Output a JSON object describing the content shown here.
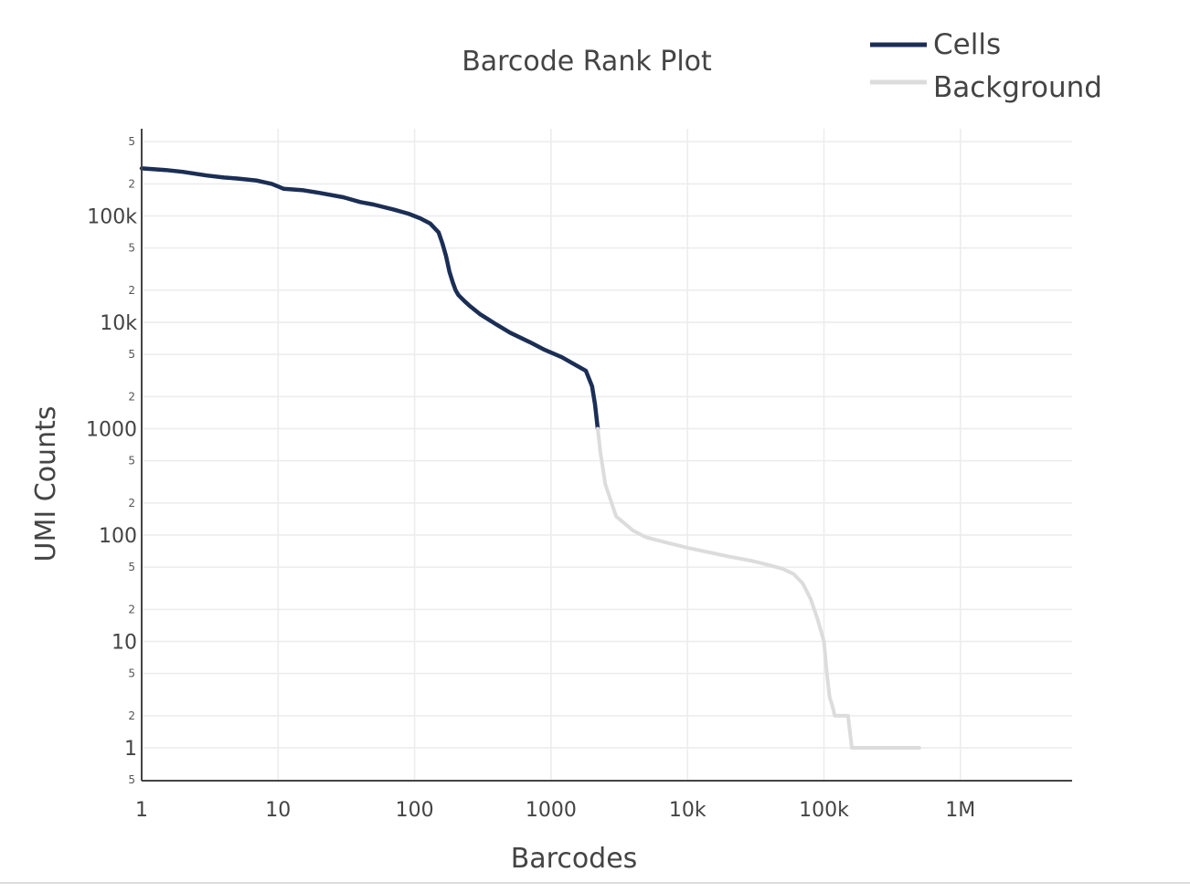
{
  "chart_data": {
    "type": "line",
    "title": "Barcode Rank Plot",
    "xlabel": "Barcodes",
    "ylabel": "UMI Counts",
    "x_scale": "log",
    "y_scale": "log",
    "xlim": [
      1,
      6000000
    ],
    "ylim": [
      0.5,
      500000
    ],
    "grid": true,
    "legend_position": "top-right",
    "x_ticks": [
      {
        "value": 1,
        "label": "1"
      },
      {
        "value": 10,
        "label": "10"
      },
      {
        "value": 100,
        "label": "100"
      },
      {
        "value": 1000,
        "label": "1000"
      },
      {
        "value": 10000,
        "label": "10k"
      },
      {
        "value": 100000,
        "label": "100k"
      },
      {
        "value": 1000000,
        "label": "1M"
      }
    ],
    "y_major_ticks": [
      {
        "value": 1,
        "label": "1"
      },
      {
        "value": 10,
        "label": "10"
      },
      {
        "value": 100,
        "label": "100"
      },
      {
        "value": 1000,
        "label": "1000"
      },
      {
        "value": 10000,
        "label": "10k"
      },
      {
        "value": 100000,
        "label": "100k"
      }
    ],
    "y_minor_ticks": [
      {
        "value": 0.5,
        "label": "5"
      },
      {
        "value": 2,
        "label": "2"
      },
      {
        "value": 5,
        "label": "5"
      },
      {
        "value": 20,
        "label": "2"
      },
      {
        "value": 50,
        "label": "5"
      },
      {
        "value": 200,
        "label": "2"
      },
      {
        "value": 500,
        "label": "5"
      },
      {
        "value": 2000,
        "label": "2"
      },
      {
        "value": 5000,
        "label": "5"
      },
      {
        "value": 20000,
        "label": "2"
      },
      {
        "value": 50000,
        "label": "5"
      },
      {
        "value": 200000,
        "label": "2"
      },
      {
        "value": 500000,
        "label": "5"
      }
    ],
    "series": [
      {
        "name": "Cells",
        "color": "#1b2e55",
        "x": [
          1,
          1.5,
          2,
          3,
          4,
          5,
          7,
          9,
          11,
          15,
          20,
          30,
          40,
          50,
          70,
          90,
          110,
          130,
          150,
          160,
          170,
          180,
          190,
          200,
          210,
          230,
          250,
          300,
          400,
          500,
          700,
          900,
          1200,
          1500,
          1800,
          2000,
          2100,
          2200
        ],
        "y": [
          280000,
          270000,
          260000,
          240000,
          230000,
          225000,
          215000,
          200000,
          180000,
          175000,
          165000,
          150000,
          135000,
          128000,
          115000,
          105000,
          95000,
          85000,
          70000,
          55000,
          42000,
          30000,
          24000,
          20000,
          18000,
          16000,
          14500,
          12000,
          9500,
          8000,
          6500,
          5500,
          4700,
          4000,
          3500,
          2500,
          1700,
          1000
        ]
      },
      {
        "name": "Background",
        "color": "#dcdcdc",
        "x": [
          2200,
          2300,
          2500,
          3000,
          4000,
          5000,
          7000,
          10000,
          15000,
          20000,
          30000,
          40000,
          50000,
          60000,
          70000,
          80000,
          90000,
          100000,
          105000,
          110000,
          115000,
          120000,
          125000,
          150000,
          160000,
          200000,
          300000,
          500000
        ],
        "y": [
          1000,
          600,
          300,
          150,
          110,
          95,
          85,
          76,
          68,
          63,
          57,
          52,
          48,
          43,
          35,
          25,
          16,
          10,
          5,
          3,
          2.5,
          2,
          2,
          2,
          1,
          1,
          1,
          1
        ]
      }
    ]
  }
}
